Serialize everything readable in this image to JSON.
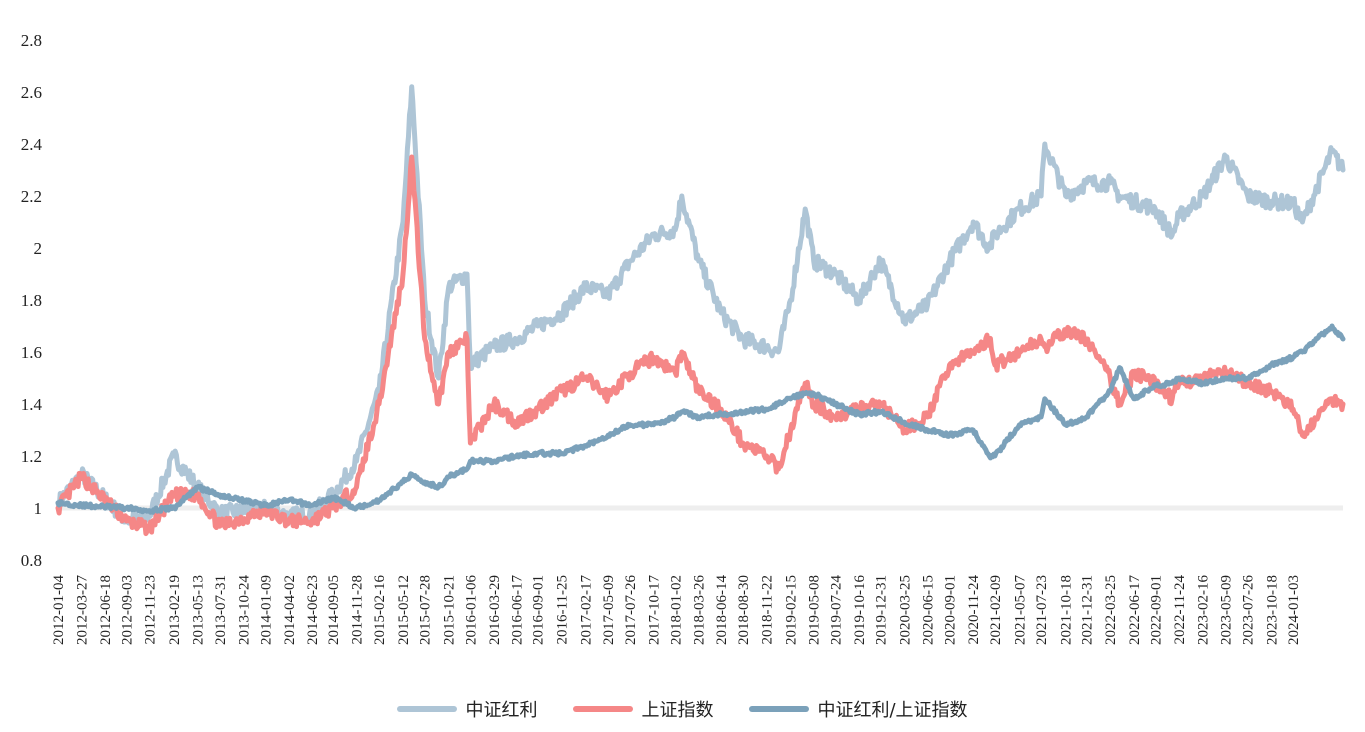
{
  "chart_data": {
    "type": "line",
    "title": "",
    "xlabel": "",
    "ylabel": "",
    "ylim": [
      0.8,
      2.8
    ],
    "yticks": [
      "0.8",
      "1",
      "1.2",
      "1.4",
      "1.6",
      "1.8",
      "2",
      "2.2",
      "2.4",
      "2.6",
      "2.8"
    ],
    "reference_line": 1,
    "x_tick_labels": [
      "2012-01-04",
      "2012-03-27",
      "2012-06-18",
      "2012-09-03",
      "2012-11-23",
      "2013-02-19",
      "2013-05-13",
      "2013-07-31",
      "2013-10-24",
      "2014-01-09",
      "2014-04-02",
      "2014-06-23",
      "2014-09-05",
      "2014-11-28",
      "2015-02-16",
      "2015-05-12",
      "2015-07-28",
      "2015-10-21",
      "2016-01-06",
      "2016-03-29",
      "2016-06-17",
      "2016-09-01",
      "2016-11-25",
      "2017-02-17",
      "2017-05-09",
      "2017-07-26",
      "2017-10-17",
      "2018-01-02",
      "2018-03-26",
      "2018-06-14",
      "2018-08-30",
      "2018-11-22",
      "2019-02-15",
      "2019-05-08",
      "2019-07-24",
      "2019-10-16",
      "2019-12-31",
      "2020-03-25",
      "2020-06-15",
      "2020-09-01",
      "2020-11-24",
      "2021-02-09",
      "2021-05-07",
      "2021-07-23",
      "2021-10-18",
      "2021-12-31",
      "2022-03-25",
      "2022-06-17",
      "2022-09-01",
      "2022-11-24",
      "2023-02-16",
      "2023-05-09",
      "2023-07-26",
      "2023-10-18",
      "2024-01-03"
    ],
    "x_key_dates": [
      "2012-01-04",
      "2012-03-27",
      "2012-09-03",
      "2012-11-23",
      "2013-02-19",
      "2013-05-13",
      "2013-07-31",
      "2014-01-09",
      "2014-04-02",
      "2014-06-23",
      "2014-09-05",
      "2014-11-28",
      "2015-02-16",
      "2015-05-12",
      "2015-06-12",
      "2015-07-28",
      "2015-09-15",
      "2015-10-21",
      "2015-12-25",
      "2016-01-06",
      "2016-03-29",
      "2016-06-17",
      "2016-09-01",
      "2016-11-25",
      "2017-02-17",
      "2017-05-09",
      "2017-07-26",
      "2017-10-17",
      "2018-01-02",
      "2018-01-25",
      "2018-03-26",
      "2018-06-14",
      "2018-08-30",
      "2018-11-22",
      "2019-01-03",
      "2019-02-15",
      "2019-04-08",
      "2019-05-08",
      "2019-07-24",
      "2019-10-16",
      "2019-12-31",
      "2020-03-25",
      "2020-06-15",
      "2020-09-01",
      "2020-11-24",
      "2021-01-20",
      "2021-02-09",
      "2021-05-07",
      "2021-07-23",
      "2021-08-05",
      "2021-10-18",
      "2021-12-31",
      "2022-03-25",
      "2022-04-27",
      "2022-06-17",
      "2022-09-01",
      "2022-10-31",
      "2022-11-24",
      "2023-02-16",
      "2023-05-09",
      "2023-07-26",
      "2023-10-18",
      "2024-01-03",
      "2024-02-05",
      "2024-05-20",
      "2024-06-28"
    ],
    "series": [
      {
        "name": "中证红利",
        "color": "#aec5d6",
        "values": [
          1.02,
          1.13,
          0.95,
          0.97,
          1.2,
          1.08,
          0.98,
          1.0,
          0.97,
          0.98,
          1.05,
          1.18,
          1.45,
          2.1,
          2.62,
          1.8,
          1.5,
          1.85,
          1.9,
          1.55,
          1.62,
          1.65,
          1.7,
          1.75,
          1.85,
          1.82,
          1.95,
          2.05,
          2.07,
          2.2,
          1.95,
          1.75,
          1.65,
          1.62,
          1.6,
          1.8,
          2.15,
          1.95,
          1.9,
          1.8,
          1.95,
          1.72,
          1.78,
          1.95,
          2.1,
          2.0,
          2.05,
          2.15,
          2.2,
          2.4,
          2.2,
          2.25,
          2.25,
          2.2,
          2.18,
          2.15,
          2.05,
          2.12,
          2.2,
          2.35,
          2.2,
          2.18,
          2.17,
          2.1,
          2.37,
          2.3
        ]
      },
      {
        "name": "上证指数",
        "color": "#f58787",
        "values": [
          1.0,
          1.12,
          0.95,
          0.92,
          1.05,
          1.05,
          0.93,
          0.99,
          0.95,
          0.95,
          1.0,
          1.08,
          1.4,
          1.9,
          2.35,
          1.65,
          1.4,
          1.6,
          1.65,
          1.25,
          1.4,
          1.33,
          1.38,
          1.45,
          1.5,
          1.43,
          1.52,
          1.58,
          1.52,
          1.6,
          1.45,
          1.38,
          1.25,
          1.2,
          1.15,
          1.3,
          1.48,
          1.4,
          1.35,
          1.38,
          1.4,
          1.3,
          1.35,
          1.55,
          1.6,
          1.65,
          1.55,
          1.6,
          1.65,
          1.62,
          1.68,
          1.65,
          1.5,
          1.4,
          1.52,
          1.48,
          1.42,
          1.48,
          1.5,
          1.52,
          1.48,
          1.45,
          1.38,
          1.28,
          1.42,
          1.4
        ]
      },
      {
        "name": "中证红利/上证指数",
        "color": "#7ba1ba",
        "values": [
          1.02,
          1.01,
          1.0,
          0.99,
          1.0,
          1.08,
          1.05,
          1.01,
          1.03,
          1.01,
          1.04,
          1.0,
          1.03,
          1.1,
          1.13,
          1.1,
          1.08,
          1.12,
          1.15,
          1.18,
          1.18,
          1.2,
          1.21,
          1.21,
          1.24,
          1.28,
          1.32,
          1.32,
          1.35,
          1.37,
          1.35,
          1.36,
          1.37,
          1.38,
          1.4,
          1.42,
          1.44,
          1.44,
          1.4,
          1.36,
          1.37,
          1.33,
          1.3,
          1.28,
          1.3,
          1.2,
          1.2,
          1.32,
          1.35,
          1.42,
          1.32,
          1.35,
          1.45,
          1.54,
          1.42,
          1.47,
          1.48,
          1.5,
          1.48,
          1.5,
          1.5,
          1.55,
          1.58,
          1.6,
          1.7,
          1.65
        ]
      }
    ],
    "legend_placement": "bottom-center",
    "grid": false
  }
}
